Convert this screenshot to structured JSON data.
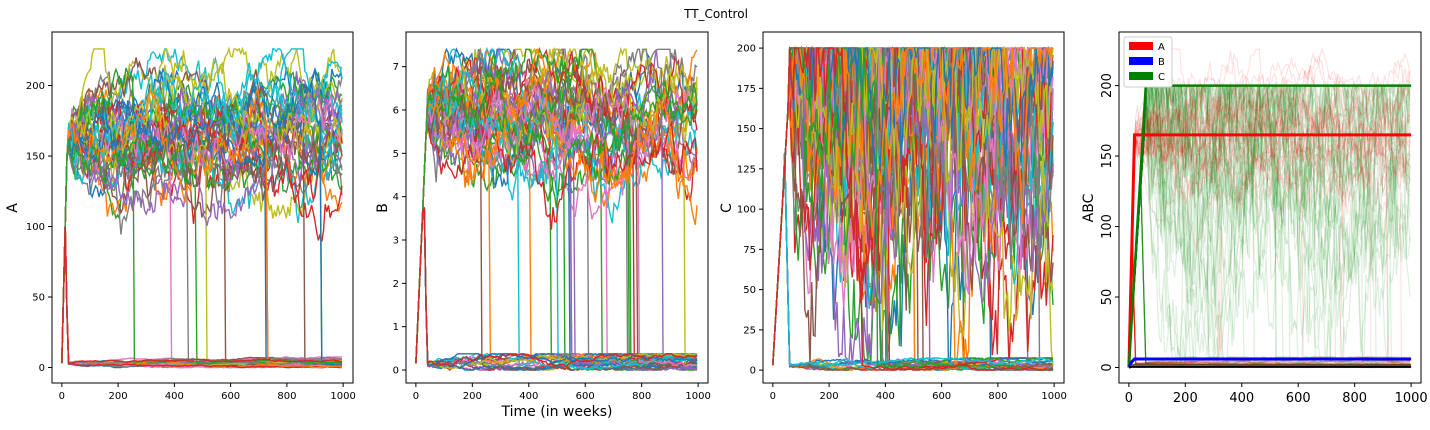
{
  "figure": {
    "title": "TT_Control"
  },
  "chart_data": [
    {
      "type": "line",
      "title": "",
      "xlabel": "",
      "ylabel": "A",
      "xlim": [
        -35,
        1035
      ],
      "ylim": [
        -11,
        238
      ],
      "xticks": [
        0,
        200,
        400,
        600,
        800,
        1000
      ],
      "yticks": [
        0,
        50,
        100,
        150,
        200
      ],
      "n_series": 64,
      "palette": [
        "#1f77b4",
        "#ff7f0e",
        "#2ca02c",
        "#d62728",
        "#9467bd",
        "#8c564b",
        "#e377c2",
        "#7f7f7f",
        "#bcbd22",
        "#17becf"
      ],
      "peak_time": 20,
      "peak_value": 165,
      "high_plateau": 162,
      "high_noise": 6,
      "high_spread": 55,
      "low_value": 3,
      "low_noise": 0.8,
      "max_value": 226
    },
    {
      "type": "line",
      "title": "",
      "xlabel": "Time (in weeks)",
      "ylabel": "B",
      "xlim": [
        -35,
        1035
      ],
      "ylim": [
        -0.3,
        7.8
      ],
      "xticks": [
        0,
        200,
        400,
        600,
        800,
        1000
      ],
      "yticks": [
        0,
        1,
        2,
        3,
        4,
        5,
        6,
        7
      ],
      "n_series": 64,
      "palette": [
        "#1f77b4",
        "#ff7f0e",
        "#2ca02c",
        "#d62728",
        "#9467bd",
        "#8c564b",
        "#e377c2",
        "#7f7f7f",
        "#bcbd22",
        "#17becf"
      ],
      "peak_time": 40,
      "peak_value": 6.0,
      "high_plateau": 6.0,
      "high_noise": 0.22,
      "high_spread": 1.9,
      "low_value": 0.15,
      "low_noise": 0.08,
      "max_value": 7.4
    },
    {
      "type": "line",
      "title": "",
      "xlabel": "",
      "ylabel": "C",
      "xlim": [
        -35,
        1035
      ],
      "ylim": [
        -8,
        210
      ],
      "xticks": [
        0,
        200,
        400,
        600,
        800,
        1000
      ],
      "yticks": [
        0,
        25,
        50,
        75,
        100,
        125,
        150,
        175,
        200
      ],
      "n_series": 64,
      "palette": [
        "#1f77b4",
        "#ff7f0e",
        "#2ca02c",
        "#d62728",
        "#9467bd",
        "#8c564b",
        "#e377c2",
        "#7f7f7f",
        "#bcbd22",
        "#17becf"
      ],
      "peak_time": 60,
      "peak_value": 180,
      "high_plateau": 200,
      "high_noise": 22,
      "high_spread": 160,
      "low_value": 3,
      "low_noise": 1.5,
      "max_value": 200
    },
    {
      "type": "line",
      "title": "",
      "xlabel": "",
      "ylabel": "ABC",
      "xlim": [
        -35,
        1035
      ],
      "ylim": [
        -11,
        238
      ],
      "xticks": [
        0,
        200,
        400,
        600,
        800,
        1000
      ],
      "yticks": [
        0,
        50,
        100,
        150,
        200
      ],
      "legend_position": "top-left",
      "series": [
        {
          "name": "A",
          "color": "#ff0000",
          "mean_plateau": 165,
          "opacity": 0.12
        },
        {
          "name": "B",
          "color": "#0000ff",
          "mean_plateau": 6,
          "opacity": 0.9
        },
        {
          "name": "C",
          "color": "#008000",
          "mean_plateau": 200,
          "opacity": 0.12
        }
      ]
    }
  ]
}
